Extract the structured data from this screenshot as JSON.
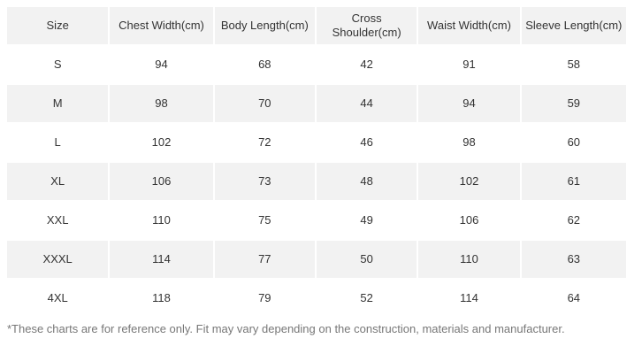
{
  "table": {
    "header": [
      "Size",
      "Chest Width(cm)",
      "Body Length(cm)",
      "Cross Shoulder(cm)",
      "Waist Width(cm)",
      "Sleeve Length(cm)"
    ],
    "rows": [
      [
        "S",
        94,
        68,
        42,
        91,
        58
      ],
      [
        "M",
        98,
        70,
        44,
        94,
        59
      ],
      [
        "L",
        102,
        72,
        46,
        98,
        60
      ],
      [
        "XL",
        106,
        73,
        48,
        102,
        61
      ],
      [
        "XXL",
        110,
        75,
        49,
        106,
        62
      ],
      [
        "XXXL",
        114,
        77,
        50,
        110,
        63
      ],
      [
        "4XL",
        118,
        79,
        52,
        114,
        64
      ]
    ]
  },
  "footnote": "*These charts are for reference only. Fit may vary depending on the construction, materials and manufacturer."
}
